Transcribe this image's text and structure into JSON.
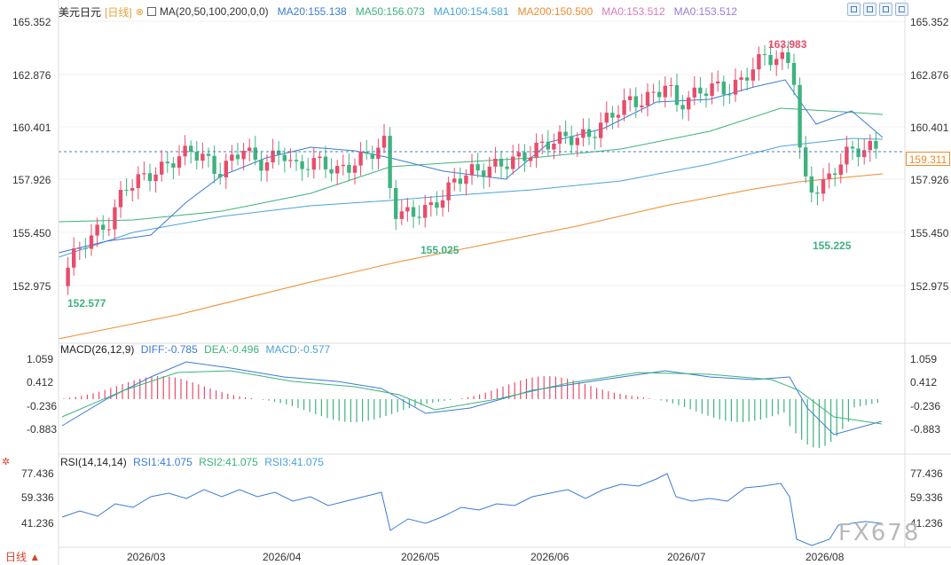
{
  "header": {
    "pair": "美元日元",
    "period": "[日线]",
    "ma_label": "MA(20,50,100,200,0,0)",
    "legend": [
      {
        "text": "MA20:155.138",
        "color": "#3a7bd5"
      },
      {
        "text": "MA50:156.073",
        "color": "#3bb37a"
      },
      {
        "text": "MA100:154.581",
        "color": "#4aa3d8"
      },
      {
        "text": "MA200:150.500",
        "color": "#f08a2c"
      },
      {
        "text": "MA0:153.512",
        "color": "#d87ab8"
      },
      {
        "text": "MA0:153.512",
        "color": "#9a7ad8"
      }
    ]
  },
  "icons": {
    "period_icon": "double-chevron-icon",
    "tools": [
      "crosshair-icon",
      "expand-icon",
      "layout-icon",
      "close-icon"
    ]
  },
  "main_axis": [
    "165.352",
    "162.876",
    "160.401",
    "157.926",
    "155.450",
    "152.975"
  ],
  "current_price": "159.311",
  "price_annotations": {
    "high": "163.983",
    "low_may": "155.025",
    "low_mar": "152.577",
    "low_aug": "155.225"
  },
  "macd": {
    "label": "MACD(26,12,9)",
    "diff": "DIFF:-0.785",
    "dea": "DEA:-0.496",
    "macd": "MACD:-0.577",
    "axis": [
      "1.059",
      "0.412",
      "-0.236",
      "-0.883"
    ]
  },
  "rsi": {
    "label": "RSI(14,14,14)",
    "rsi1": "RSI1:41.075",
    "rsi2": "RSI2:41.075",
    "rsi3": "RSI3:41.075",
    "axis": [
      "77.436",
      "59.336",
      "41.236"
    ]
  },
  "x_axis": [
    "2026/03",
    "2026/04",
    "2026/05",
    "2026/06",
    "2026/07",
    "2026/08"
  ],
  "bottom_left": "日线 ▲",
  "watermark": "FX678",
  "colors": {
    "up": "#e84d6b",
    "down": "#3fb27f",
    "grid": "#e6e6e6",
    "accent": "#f08a2c"
  }
}
